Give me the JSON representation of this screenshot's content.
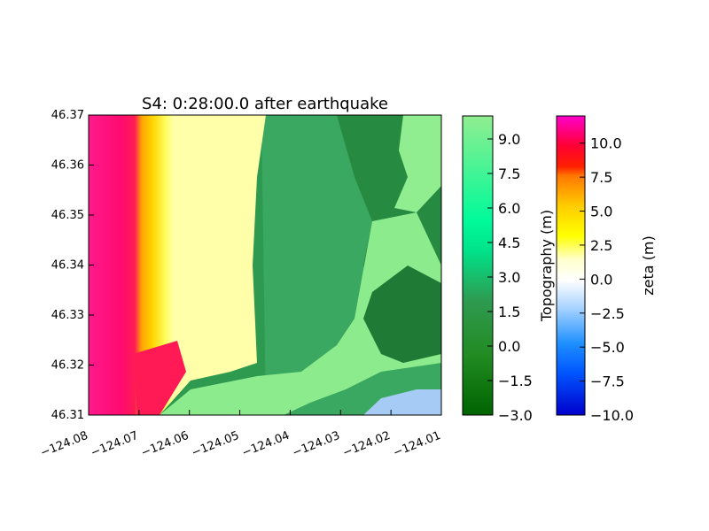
{
  "chart_data": {
    "type": "heatmap",
    "title": "S4: 0:28:00.0 after earthquake",
    "x_ticks": [
      -124.08,
      -124.07,
      -124.06,
      -124.05,
      -124.04,
      -124.03,
      -124.02,
      -124.01
    ],
    "x_tick_labels": [
      "−124.08",
      "−124.07",
      "−124.06",
      "−124.05",
      "−124.04",
      "−124.03",
      "−124.02",
      "−124.01"
    ],
    "xlim": [
      -124.08,
      -124.01
    ],
    "y_ticks": [
      46.31,
      46.32,
      46.33,
      46.34,
      46.35,
      46.36,
      46.37
    ],
    "y_tick_labels": [
      "46.31",
      "46.32",
      "46.33",
      "46.34",
      "46.35",
      "46.36",
      "46.37"
    ],
    "ylim": [
      46.31,
      46.37
    ],
    "colorbars": [
      {
        "label": "Topography (m)",
        "range": [
          -3.0,
          10.0
        ],
        "ticks": [
          -3.0,
          -1.5,
          0.0,
          1.5,
          3.0,
          4.5,
          6.0,
          7.5,
          9.0
        ],
        "tick_labels": [
          "−3.0",
          "−1.5",
          "0.0",
          "1.5",
          "3.0",
          "4.5",
          "6.0",
          "7.5",
          "9.0"
        ],
        "colors": [
          "#006400",
          "#2e8b3a",
          "#3cb371",
          "#00fa9a",
          "#7cfc7c",
          "#98fb98"
        ]
      },
      {
        "label": "zeta (m)",
        "range": [
          -10.0,
          12.0
        ],
        "ticks": [
          -10.0,
          -7.5,
          -5.0,
          -2.5,
          0.0,
          2.5,
          5.0,
          7.5,
          10.0
        ],
        "tick_labels": [
          "−10.0",
          "−7.5",
          "−5.0",
          "−2.5",
          "0.0",
          "2.5",
          "5.0",
          "7.5",
          "10.0"
        ],
        "colors": [
          "#0000cc",
          "#1e90ff",
          "#aad4ff",
          "#ffffff",
          "#ffff40",
          "#ffaa00",
          "#ff0000",
          "#ff00ff"
        ]
      }
    ]
  }
}
